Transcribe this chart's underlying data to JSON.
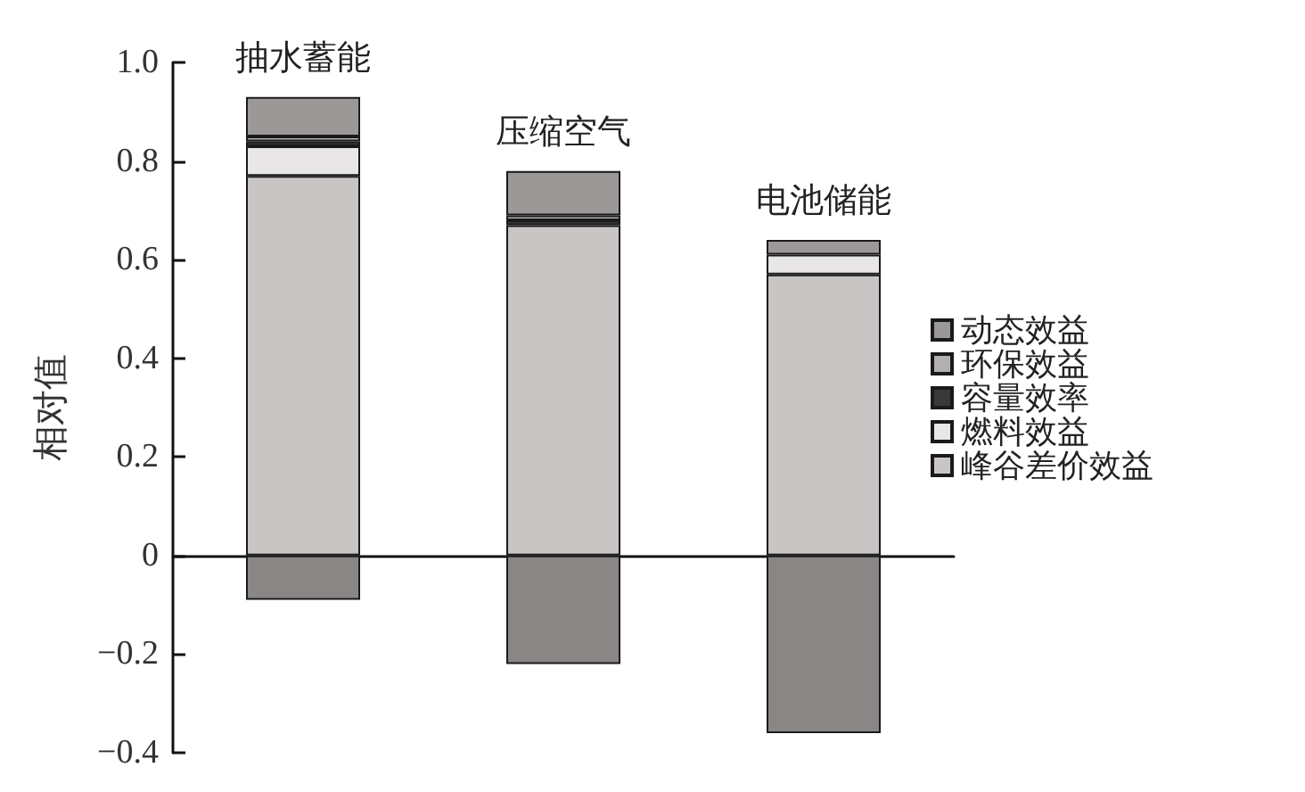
{
  "chart_data": {
    "type": "bar",
    "stacked": true,
    "categories": [
      "抽水蓄能",
      "压缩空气",
      "电池储能"
    ],
    "ylabel": "相对值",
    "ylim": [
      -0.4,
      1.0
    ],
    "yticks": [
      {
        "value": -0.4,
        "label": "−0.4"
      },
      {
        "value": -0.2,
        "label": "−0.2"
      },
      0,
      0.2,
      0.4,
      0.6,
      0.8,
      {
        "value": 1.0,
        "label": "1.0"
      }
    ],
    "legend": "right",
    "series": [
      {
        "name": "峰谷差价效益",
        "color": "#c9c5c5",
        "values": [
          0.77,
          0.67,
          0.57
        ]
      },
      {
        "name": "燃料效益",
        "color": "#e8e6e6",
        "values": [
          0.06,
          null,
          0.04
        ]
      },
      {
        "name": "容量效率",
        "color": "#3a3838",
        "values": [
          0.01,
          0.01,
          null
        ]
      },
      {
        "name": "环保效益",
        "color": "#b4b0b0",
        "values": [
          0.01,
          0.01,
          null
        ]
      },
      {
        "name": "动态效益",
        "color": "#9c9898",
        "values": [
          0.08,
          0.09,
          0.03
        ]
      },
      {
        "color": "#8a8686",
        "values": [
          -0.09,
          -0.22,
          -0.36
        ]
      }
    ]
  }
}
